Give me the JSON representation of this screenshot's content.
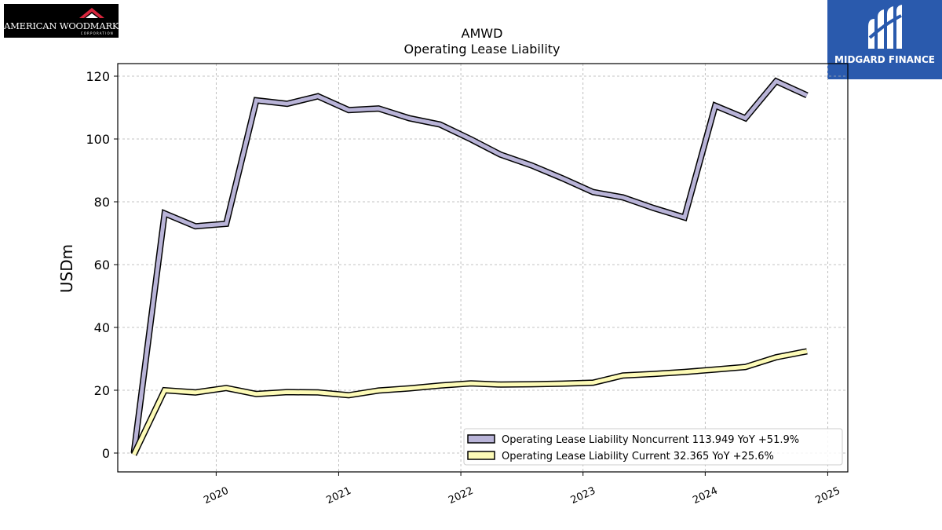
{
  "logos": {
    "left": {
      "text": "AMERICAN WOODMARK",
      "subtext": "CORPORATION",
      "icon": "roof-mark-icon"
    },
    "right": {
      "text": "MIDGARD FINANCE",
      "icon": "midgard-m-icon"
    }
  },
  "chart_data": {
    "type": "line",
    "title": "AMWD",
    "subtitle": "Operating Lease Liability",
    "xlabel": "",
    "ylabel": "USDm",
    "xlim": [
      "2019-03-13",
      "2025-03-02"
    ],
    "ylim": [
      -6,
      124
    ],
    "yticks": [
      0,
      20,
      40,
      60,
      80,
      100,
      120
    ],
    "xticks": [
      {
        "date": "2020-01-01",
        "label": "2020"
      },
      {
        "date": "2021-01-01",
        "label": "2021"
      },
      {
        "date": "2022-01-01",
        "label": "2022"
      },
      {
        "date": "2023-01-01",
        "label": "2023"
      },
      {
        "date": "2024-01-01",
        "label": "2024"
      },
      {
        "date": "2025-01-01",
        "label": "2025"
      }
    ],
    "grid": true,
    "legend_position": "lower-right",
    "x": [
      "2019-04-30",
      "2019-07-31",
      "2019-10-31",
      "2020-01-31",
      "2020-04-30",
      "2020-07-31",
      "2020-10-31",
      "2021-01-31",
      "2021-04-30",
      "2021-07-31",
      "2021-10-31",
      "2022-01-31",
      "2022-04-30",
      "2022-07-31",
      "2022-10-31",
      "2023-01-31",
      "2023-04-30",
      "2023-07-31",
      "2023-10-31",
      "2024-01-31",
      "2024-04-30",
      "2024-07-31",
      "2024-10-31"
    ],
    "series": [
      {
        "name": "Operating Lease Liability Noncurrent",
        "legend": "Operating Lease Liability Noncurrent  113.949 YoY +51.9%",
        "color": "#b9b4d8",
        "values": [
          0,
          76.3,
          72.2,
          73.0,
          112.3,
          111.2,
          113.6,
          109.2,
          109.7,
          106.6,
          104.6,
          99.9,
          95.0,
          91.6,
          87.5,
          83.1,
          81.4,
          78.0,
          75.0,
          110.6,
          106.6,
          118.4,
          113.9
        ]
      },
      {
        "name": "Operating Lease Liability Current",
        "legend": "Operating Lease Liability Current  32.365 YoY +25.6%",
        "color": "#fdfbb7",
        "values": [
          -0.5,
          20.0,
          19.3,
          20.7,
          18.8,
          19.4,
          19.3,
          18.4,
          19.9,
          20.6,
          21.5,
          22.2,
          21.8,
          21.9,
          22.1,
          22.4,
          24.7,
          25.2,
          25.8,
          26.6,
          27.4,
          30.5,
          32.4
        ]
      }
    ]
  }
}
